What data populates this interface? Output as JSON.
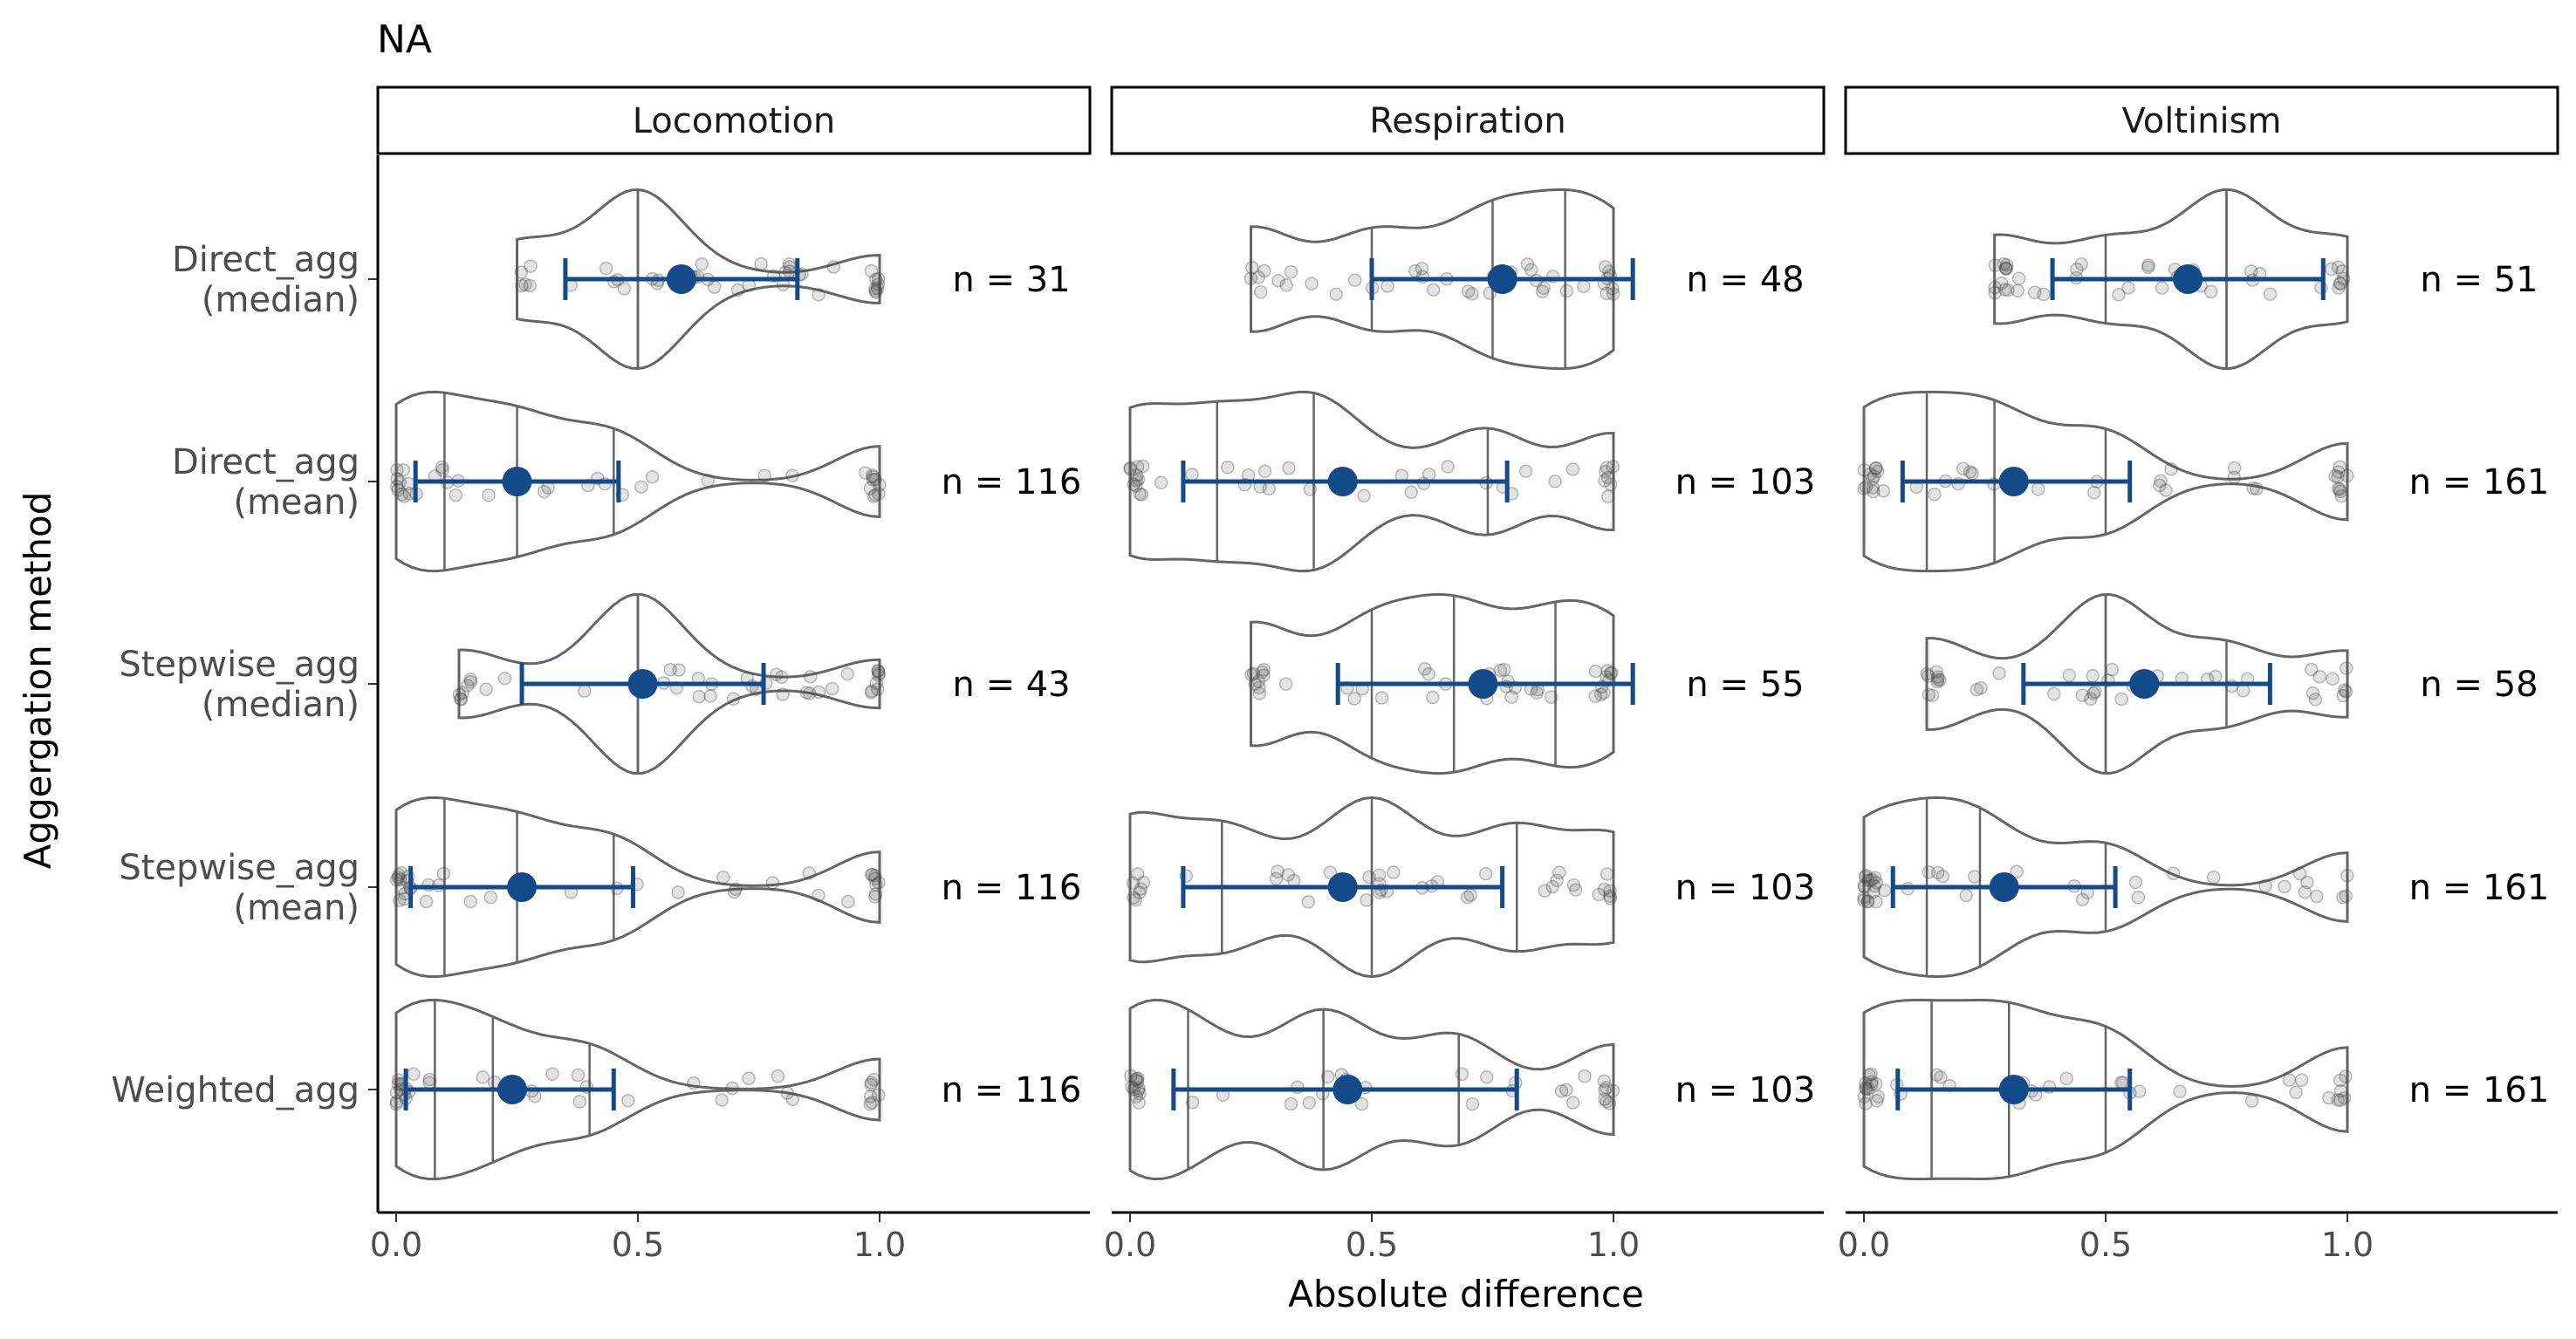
{
  "chart_data": {
    "type": "violin",
    "title": "NA",
    "xlabel": "Absolute difference",
    "ylabel": "Aggergation method",
    "xlim": [
      -0.05,
      1.4
    ],
    "x_ticks": [
      0.0,
      0.5,
      1.0
    ],
    "x_tick_labels": [
      "0.0",
      "0.5",
      "1.0"
    ],
    "grid": false,
    "categories": [
      "Direct_agg\n(median)",
      "Direct_agg\n(mean)",
      "Stepwise_agg\n(median)",
      "Stepwise_agg\n(mean)",
      "Weighted_agg"
    ],
    "colors": {
      "summary": "#124A8A",
      "violin": "#666666",
      "points": "#444444",
      "strip_border": "#000000"
    },
    "panels": [
      {
        "name": "Locomotion",
        "rows": [
          {
            "category": "Direct_agg\n(median)",
            "min": 0.25,
            "max": 1.0,
            "quantiles": [
              0.5,
              0.5,
              0.5
            ],
            "mean": 0.59,
            "ci": [
              0.35,
              0.83
            ],
            "n_label": "n = 31"
          },
          {
            "category": "Direct_agg\n(mean)",
            "min": 0.0,
            "max": 1.0,
            "quantiles": [
              0.1,
              0.25,
              0.45
            ],
            "mean": 0.25,
            "ci": [
              0.04,
              0.46
            ],
            "n_label": "n = 116"
          },
          {
            "category": "Stepwise_agg\n(median)",
            "min": 0.13,
            "max": 1.0,
            "quantiles": [
              0.5,
              0.5,
              0.5
            ],
            "mean": 0.51,
            "ci": [
              0.26,
              0.76
            ],
            "n_label": "n = 43"
          },
          {
            "category": "Stepwise_agg\n(mean)",
            "min": 0.0,
            "max": 1.0,
            "quantiles": [
              0.1,
              0.25,
              0.45
            ],
            "mean": 0.26,
            "ci": [
              0.03,
              0.49
            ],
            "n_label": "n = 116"
          },
          {
            "category": "Weighted_agg",
            "min": 0.0,
            "max": 1.0,
            "quantiles": [
              0.08,
              0.2,
              0.4
            ],
            "mean": 0.24,
            "ci": [
              0.02,
              0.45
            ],
            "n_label": "n = 116"
          }
        ]
      },
      {
        "name": "Respiration",
        "rows": [
          {
            "category": "Direct_agg\n(median)",
            "min": 0.25,
            "max": 1.0,
            "quantiles": [
              0.5,
              0.75,
              0.9
            ],
            "mean": 0.77,
            "ci": [
              0.5,
              1.04
            ],
            "n_label": "n = 48"
          },
          {
            "category": "Direct_agg\n(mean)",
            "min": 0.0,
            "max": 1.0,
            "quantiles": [
              0.18,
              0.38,
              0.74
            ],
            "mean": 0.44,
            "ci": [
              0.11,
              0.78
            ],
            "n_label": "n = 103"
          },
          {
            "category": "Stepwise_agg\n(median)",
            "min": 0.25,
            "max": 1.0,
            "quantiles": [
              0.5,
              0.67,
              0.88
            ],
            "mean": 0.73,
            "ci": [
              0.43,
              1.04
            ],
            "n_label": "n = 55"
          },
          {
            "category": "Stepwise_agg\n(mean)",
            "min": 0.0,
            "max": 1.0,
            "quantiles": [
              0.19,
              0.5,
              0.8
            ],
            "mean": 0.44,
            "ci": [
              0.11,
              0.77
            ],
            "n_label": "n = 103"
          },
          {
            "category": "Weighted_agg",
            "min": 0.0,
            "max": 1.0,
            "quantiles": [
              0.12,
              0.4,
              0.68
            ],
            "mean": 0.45,
            "ci": [
              0.09,
              0.8
            ],
            "n_label": "n = 103"
          }
        ]
      },
      {
        "name": "Voltinism",
        "rows": [
          {
            "category": "Direct_agg\n(median)",
            "min": 0.27,
            "max": 1.0,
            "quantiles": [
              0.5,
              0.75,
              0.75
            ],
            "mean": 0.67,
            "ci": [
              0.39,
              0.95
            ],
            "n_label": "n = 51"
          },
          {
            "category": "Direct_agg\n(mean)",
            "min": 0.0,
            "max": 1.0,
            "quantiles": [
              0.13,
              0.27,
              0.5
            ],
            "mean": 0.31,
            "ci": [
              0.08,
              0.55
            ],
            "n_label": "n = 161"
          },
          {
            "category": "Stepwise_agg\n(median)",
            "min": 0.13,
            "max": 1.0,
            "quantiles": [
              0.5,
              0.5,
              0.75
            ],
            "mean": 0.58,
            "ci": [
              0.33,
              0.84
            ],
            "n_label": "n = 58"
          },
          {
            "category": "Stepwise_agg\n(mean)",
            "min": 0.0,
            "max": 1.0,
            "quantiles": [
              0.13,
              0.24,
              0.5
            ],
            "mean": 0.29,
            "ci": [
              0.06,
              0.52
            ],
            "n_label": "n = 161"
          },
          {
            "category": "Weighted_agg",
            "min": 0.0,
            "max": 1.0,
            "quantiles": [
              0.14,
              0.3,
              0.5
            ],
            "mean": 0.31,
            "ci": [
              0.07,
              0.55
            ],
            "n_label": "n = 161"
          }
        ]
      }
    ]
  }
}
